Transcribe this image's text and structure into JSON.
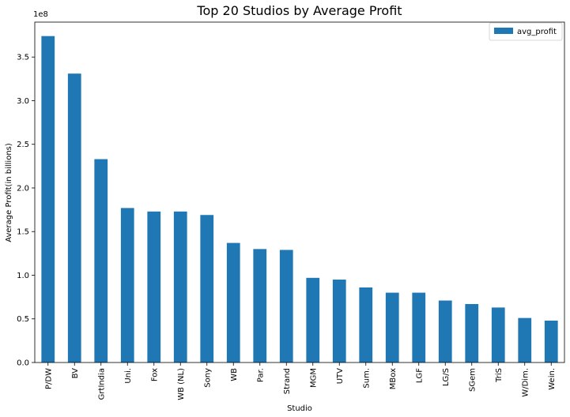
{
  "chart_data": {
    "type": "bar",
    "title": "Top 20 Studios by Average Profit",
    "xlabel": "Studio",
    "ylabel": "Average Profit(in billions)",
    "y_offset_label": "1e8",
    "y_multiplier": 100000000,
    "ylim": [
      0,
      3.9
    ],
    "yticks": [
      0.0,
      0.5,
      1.0,
      1.5,
      2.0,
      2.5,
      3.0,
      3.5
    ],
    "ytick_labels": [
      "0.0",
      "0.5",
      "1.0",
      "1.5",
      "2.0",
      "2.5",
      "3.0",
      "3.5"
    ],
    "categories": [
      "P/DW",
      "BV",
      "GrtIndia",
      "Uni.",
      "Fox",
      "WB (NL)",
      "Sony",
      "WB",
      "Par.",
      "Strand",
      "MGM",
      "UTV",
      "Sum.",
      "MBox",
      "LGF",
      "LG/S",
      "SGem",
      "TriS",
      "W/Dim.",
      "Wein."
    ],
    "series": [
      {
        "name": "avg_profit",
        "color": "#1f77b4",
        "values": [
          3.74,
          3.31,
          2.33,
          1.77,
          1.73,
          1.73,
          1.69,
          1.37,
          1.3,
          1.29,
          0.97,
          0.95,
          0.86,
          0.8,
          0.8,
          0.71,
          0.67,
          0.63,
          0.51,
          0.48
        ]
      }
    ],
    "legend_position": "top-right",
    "grid": false
  }
}
